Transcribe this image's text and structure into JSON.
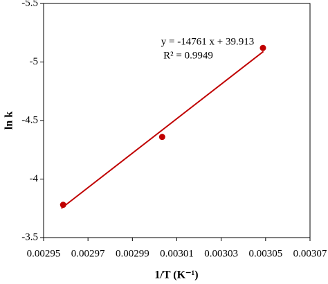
{
  "chart_data": {
    "type": "scatter",
    "x": [
      0.0029588,
      0.0030034,
      0.0030488
    ],
    "values": [
      -3.78,
      -4.36,
      -5.12
    ],
    "color": "#c00000",
    "trendline": {
      "x": [
        0.002958,
        0.003049
      ],
      "values": [
        -3.75,
        -5.09
      ],
      "color": "#c00000"
    },
    "annotations": [
      "y = -14761 x + 39.913",
      "R² = 0.9949"
    ],
    "xlabel": "1/T (K⁻¹)",
    "ylabel": "ln k",
    "xlim": [
      0.00295,
      0.00307
    ],
    "xticks": [
      0.00295,
      0.00297,
      0.00299,
      0.00301,
      0.00303,
      0.00305,
      0.00307
    ],
    "ylim": [
      -3.5,
      -5.5
    ],
    "yticks": [
      -5.5,
      -5,
      -4.5,
      -4,
      -3.5
    ]
  }
}
